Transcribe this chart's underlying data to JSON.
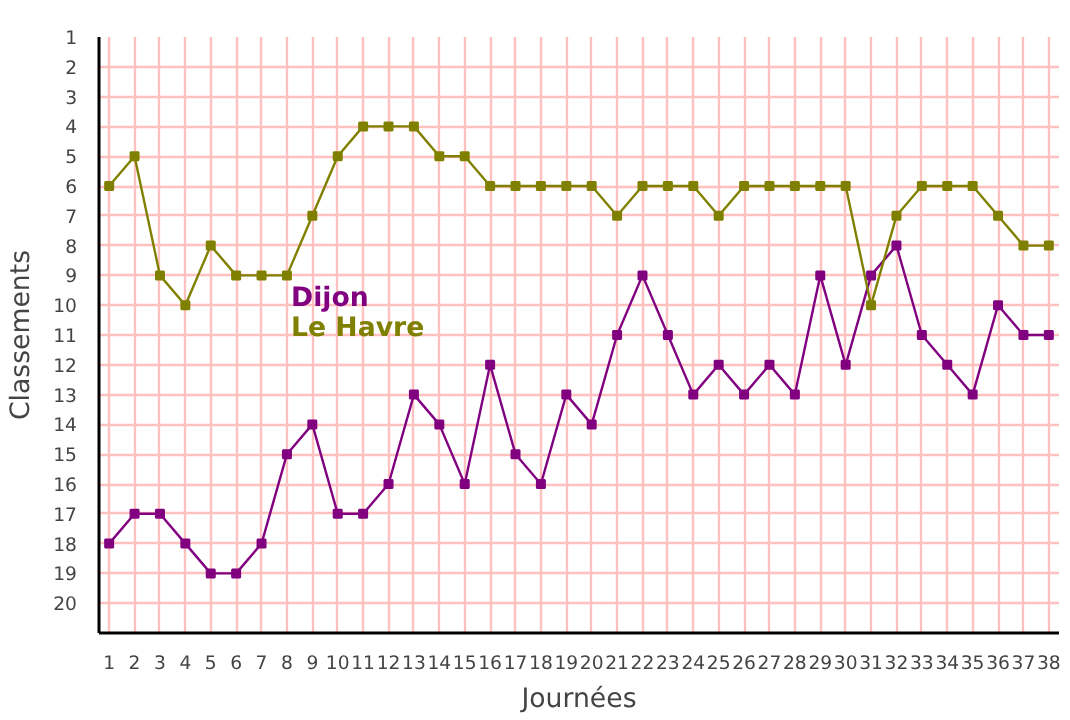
{
  "chart_data": {
    "type": "line",
    "xlabel": "Journées",
    "ylabel": "Classements",
    "x": [
      1,
      2,
      3,
      4,
      5,
      6,
      7,
      8,
      9,
      10,
      11,
      12,
      13,
      14,
      15,
      16,
      17,
      18,
      19,
      20,
      21,
      22,
      23,
      24,
      25,
      26,
      27,
      28,
      29,
      30,
      31,
      32,
      33,
      34,
      35,
      36,
      37,
      38
    ],
    "series": [
      {
        "name": "Dijon",
        "color": "#800080",
        "values": [
          18,
          17,
          17,
          18,
          19,
          19,
          18,
          15,
          14,
          17,
          17,
          16,
          13,
          14,
          16,
          12,
          15,
          16,
          13,
          14,
          11,
          9,
          11,
          13,
          12,
          13,
          12,
          13,
          9,
          12,
          9,
          8,
          11,
          12,
          13,
          10,
          11,
          11
        ]
      },
      {
        "name": "Le Havre",
        "color": "#808000",
        "values": [
          6,
          5,
          9,
          10,
          8,
          9,
          9,
          9,
          7,
          5,
          4,
          4,
          4,
          5,
          5,
          6,
          6,
          6,
          6,
          6,
          7,
          6,
          6,
          6,
          7,
          6,
          6,
          6,
          6,
          6,
          10,
          7,
          6,
          6,
          6,
          7,
          8,
          8
        ]
      }
    ],
    "xlim": [
      0.6,
      38.4
    ],
    "ylim": [
      21,
      1
    ],
    "xticks": [
      1,
      2,
      3,
      4,
      5,
      6,
      7,
      8,
      9,
      10,
      11,
      12,
      13,
      14,
      15,
      16,
      17,
      18,
      19,
      20,
      21,
      22,
      23,
      24,
      25,
      26,
      27,
      28,
      29,
      30,
      31,
      32,
      33,
      34,
      35,
      36,
      37,
      38
    ],
    "yticks": [
      1,
      2,
      3,
      4,
      5,
      6,
      7,
      8,
      9,
      10,
      11,
      12,
      13,
      14,
      15,
      16,
      17,
      18,
      19,
      20
    ],
    "grid": true,
    "legend": "center left",
    "marker": "square",
    "line_style": "solid"
  }
}
